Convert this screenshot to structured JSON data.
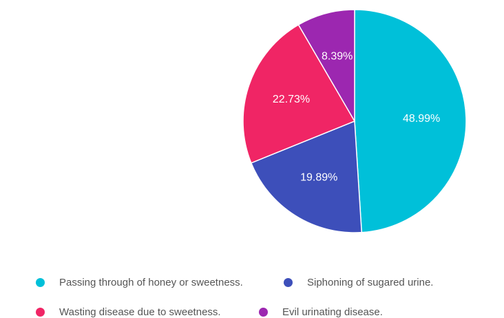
{
  "chart_data": {
    "type": "pie",
    "slices": [
      {
        "label": "Passing through of honey or sweetness.",
        "value": 48.99,
        "value_label": "48.99%",
        "color": "#00c0d9"
      },
      {
        "label": "Siphoning of sugared urine.",
        "value": 19.89,
        "value_label": "19.89%",
        "color": "#3d4fba"
      },
      {
        "label": "Wasting disease due to sweetness.",
        "value": 22.73,
        "value_label": "22.73%",
        "color": "#f02565"
      },
      {
        "label": "Evil urinating disease.",
        "value": 8.39,
        "value_label": "8.39%",
        "color": "#9c27b0"
      }
    ],
    "legend_position": "bottom",
    "start_angle": "top",
    "direction": "clockwise"
  }
}
